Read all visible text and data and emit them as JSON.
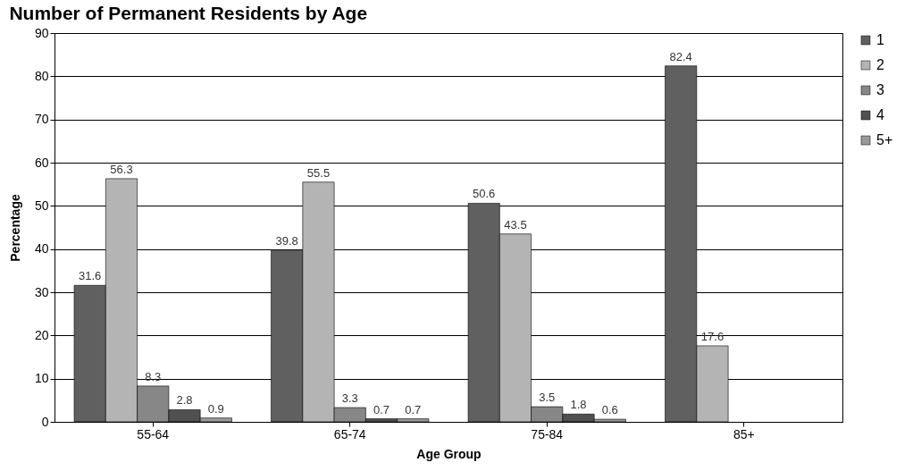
{
  "chart_data": {
    "type": "bar",
    "title": "Number of Permanent Residents by Age",
    "xlabel": "Age Group",
    "ylabel": "Percentage",
    "categories": [
      "55-64",
      "65-74",
      "75-84",
      "85+"
    ],
    "series": [
      {
        "name": "1",
        "color": "#606060",
        "values": [
          31.6,
          39.8,
          50.6,
          82.4
        ]
      },
      {
        "name": "2",
        "color": "#b4b4b4",
        "values": [
          56.3,
          55.5,
          43.5,
          17.6
        ]
      },
      {
        "name": "3",
        "color": "#878787",
        "values": [
          8.3,
          3.3,
          3.5,
          null
        ]
      },
      {
        "name": "4",
        "color": "#505050",
        "values": [
          2.8,
          0.7,
          1.8,
          null
        ]
      },
      {
        "name": "5+",
        "color": "#999999",
        "values": [
          0.9,
          0.7,
          0.6,
          null
        ]
      }
    ],
    "ylim": [
      0,
      90
    ],
    "yticks": [
      0,
      10,
      20,
      30,
      40,
      50,
      60,
      70,
      80,
      90
    ],
    "grid": "y",
    "legend": "right",
    "data_labels": true
  }
}
